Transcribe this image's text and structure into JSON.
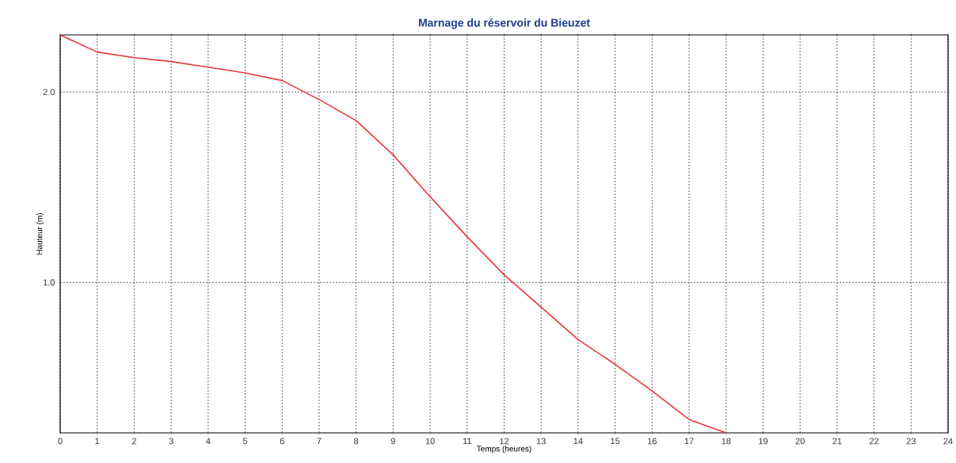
{
  "chart_data": {
    "type": "line",
    "title": "Marnage du réservoir du Bieuzet",
    "xlabel": "Temps (heures)",
    "ylabel": "Hauteur (m)",
    "x": [
      0,
      1,
      2,
      3,
      4,
      5,
      6,
      7,
      8,
      9,
      10,
      11,
      12,
      13,
      14,
      15,
      16,
      17,
      18
    ],
    "series": [
      {
        "color": "#e8383a",
        "values": [
          2.3,
          2.21,
          2.18,
          2.16,
          2.13,
          2.1,
          2.06,
          1.96,
          1.85,
          1.67,
          1.45,
          1.24,
          1.04,
          0.87,
          0.7,
          0.57,
          0.43,
          0.28,
          0.21
        ]
      }
    ],
    "xlim": [
      0,
      24
    ],
    "xticks": [
      0,
      1,
      2,
      3,
      4,
      5,
      6,
      7,
      8,
      9,
      10,
      11,
      12,
      13,
      14,
      15,
      16,
      17,
      18,
      19,
      20,
      21,
      22,
      23,
      24
    ],
    "ylim": [
      0.21,
      2.3
    ],
    "yticks": [
      {
        "value": 1.0,
        "label": "1.0"
      },
      {
        "value": 2.0,
        "label": "2.0"
      }
    ],
    "grid": true,
    "marker": "none",
    "line_style": "solid"
  }
}
